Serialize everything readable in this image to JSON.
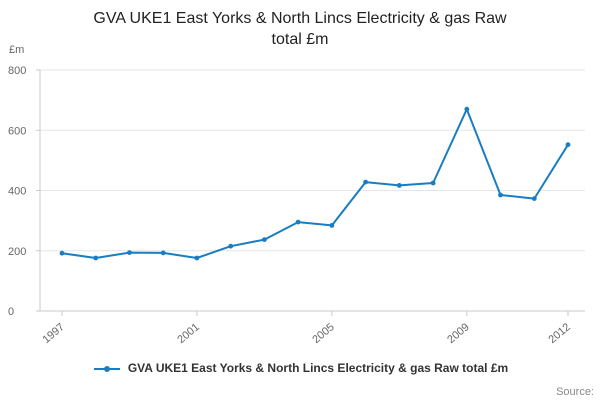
{
  "header": {
    "title_line1": "GVA UKE1 East Yorks & North Lincs Electricity & gas Raw",
    "title_line2": "total £m"
  },
  "legend": {
    "label": "GVA UKE1 East Yorks & North Lincs Electricity & gas Raw total £m"
  },
  "source_label": "Source:",
  "chart_data": {
    "type": "line",
    "title": "GVA UKE1 East Yorks & North Lincs Electricity & gas Raw total £m",
    "xlabel": "",
    "ylabel": "£m",
    "ylim": [
      0,
      800
    ],
    "y_ticks": [
      0,
      200,
      400,
      600,
      800
    ],
    "x": [
      1997,
      1998,
      1999,
      2000,
      2001,
      2002,
      2003,
      2004,
      2005,
      2006,
      2007,
      2008,
      2009,
      2010,
      2011,
      2012
    ],
    "x_ticks": [
      1997,
      2001,
      2005,
      2009,
      2012
    ],
    "grid": true,
    "legend_position": "bottom",
    "series": [
      {
        "name": "GVA UKE1 East Yorks & North Lincs Electricity & gas Raw total £m",
        "color": "#1a7dc2",
        "values": [
          192,
          176,
          194,
          193,
          176,
          215,
          237,
          295,
          284,
          428,
          417,
          425,
          670,
          385,
          373,
          552
        ]
      }
    ],
    "grid_color": "#e6e6e6",
    "axis_color": "#c9c9c9",
    "tick_label_color": "#666666"
  }
}
